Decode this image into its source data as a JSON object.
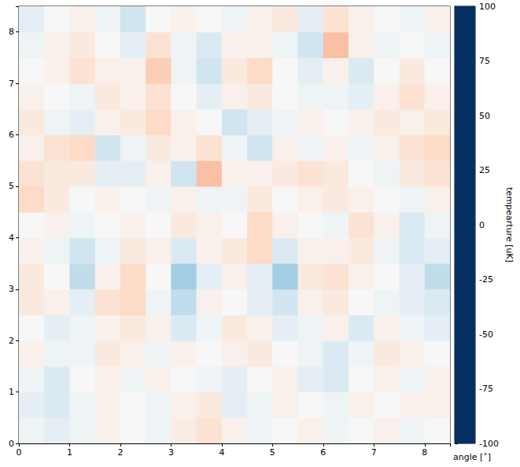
{
  "chart_data": {
    "type": "heatmap",
    "x_label": "angle [˚]",
    "colorbar_label": "tempearture [uK]",
    "xlim": [
      0,
      8.5
    ],
    "ylim": [
      0,
      8.5
    ],
    "xticks": [
      0,
      1,
      2,
      3,
      4,
      5,
      6,
      7,
      8
    ],
    "yticks": [
      0,
      1,
      2,
      3,
      4,
      5,
      6,
      7,
      8
    ],
    "x": [
      0.25,
      0.75,
      1.25,
      1.75,
      2.25,
      2.75,
      3.25,
      3.75,
      4.25,
      4.75,
      5.25,
      5.75,
      6.25,
      6.75,
      7.25,
      7.75,
      8.25
    ],
    "y": [
      0.25,
      0.75,
      1.25,
      1.75,
      2.25,
      2.75,
      3.25,
      3.75,
      4.25,
      4.75,
      5.25,
      5.75,
      6.25,
      6.75,
      7.25,
      7.75,
      8.25
    ],
    "values": [
      [
        -5,
        -10,
        -5,
        5,
        0,
        -5,
        8,
        15,
        5,
        -5,
        0,
        5,
        -5,
        0,
        5,
        -5,
        0
      ],
      [
        -10,
        -15,
        -5,
        5,
        0,
        -5,
        5,
        10,
        -10,
        -5,
        5,
        0,
        -5,
        5,
        0,
        5,
        5
      ],
      [
        -5,
        -15,
        0,
        5,
        -5,
        5,
        0,
        -5,
        -10,
        0,
        5,
        -10,
        -15,
        0,
        5,
        -5,
        5
      ],
      [
        5,
        -5,
        -5,
        10,
        5,
        -5,
        5,
        0,
        5,
        10,
        0,
        -5,
        -15,
        -5,
        10,
        5,
        0
      ],
      [
        0,
        -10,
        -5,
        5,
        10,
        5,
        -15,
        -5,
        10,
        5,
        -10,
        -5,
        5,
        -15,
        5,
        -5,
        -10
      ],
      [
        10,
        5,
        -10,
        15,
        20,
        -5,
        -25,
        5,
        0,
        -10,
        -20,
        5,
        10,
        0,
        -5,
        -10,
        -15
      ],
      [
        10,
        0,
        -25,
        5,
        20,
        0,
        -35,
        -10,
        5,
        -10,
        -35,
        10,
        15,
        5,
        0,
        -10,
        -25
      ],
      [
        5,
        -5,
        -20,
        -5,
        10,
        5,
        -15,
        5,
        10,
        20,
        -15,
        5,
        5,
        10,
        -5,
        -15,
        -10
      ],
      [
        0,
        5,
        -5,
        0,
        5,
        0,
        10,
        5,
        0,
        20,
        5,
        0,
        -5,
        15,
        5,
        -15,
        -5
      ],
      [
        20,
        10,
        0,
        5,
        0,
        -5,
        5,
        -5,
        -5,
        10,
        0,
        5,
        10,
        5,
        0,
        -5,
        5
      ],
      [
        15,
        10,
        10,
        -10,
        -10,
        5,
        -20,
        30,
        5,
        5,
        10,
        15,
        10,
        0,
        -5,
        10,
        15
      ],
      [
        5,
        15,
        20,
        -20,
        -5,
        10,
        5,
        15,
        -5,
        -20,
        5,
        -5,
        5,
        -5,
        5,
        15,
        20
      ],
      [
        10,
        -5,
        -10,
        5,
        10,
        20,
        5,
        0,
        -20,
        -10,
        -5,
        5,
        0,
        5,
        10,
        5,
        10
      ],
      [
        5,
        0,
        -5,
        10,
        5,
        15,
        0,
        -10,
        5,
        10,
        0,
        -5,
        -5,
        -10,
        5,
        15,
        5
      ],
      [
        0,
        5,
        15,
        5,
        5,
        25,
        -5,
        -20,
        10,
        20,
        0,
        -10,
        5,
        -15,
        0,
        10,
        0
      ],
      [
        -5,
        5,
        10,
        0,
        -10,
        15,
        -5,
        -15,
        5,
        5,
        -5,
        -20,
        30,
        5,
        -5,
        0,
        -5
      ],
      [
        -10,
        0,
        5,
        -5,
        -20,
        0,
        5,
        0,
        -5,
        5,
        10,
        -10,
        15,
        5,
        0,
        -5,
        5
      ]
    ],
    "colorbar_range": [
      -100,
      100
    ],
    "colorbar_ticks": [
      -100,
      -75,
      -50,
      -25,
      0,
      25,
      50,
      75,
      100
    ]
  }
}
